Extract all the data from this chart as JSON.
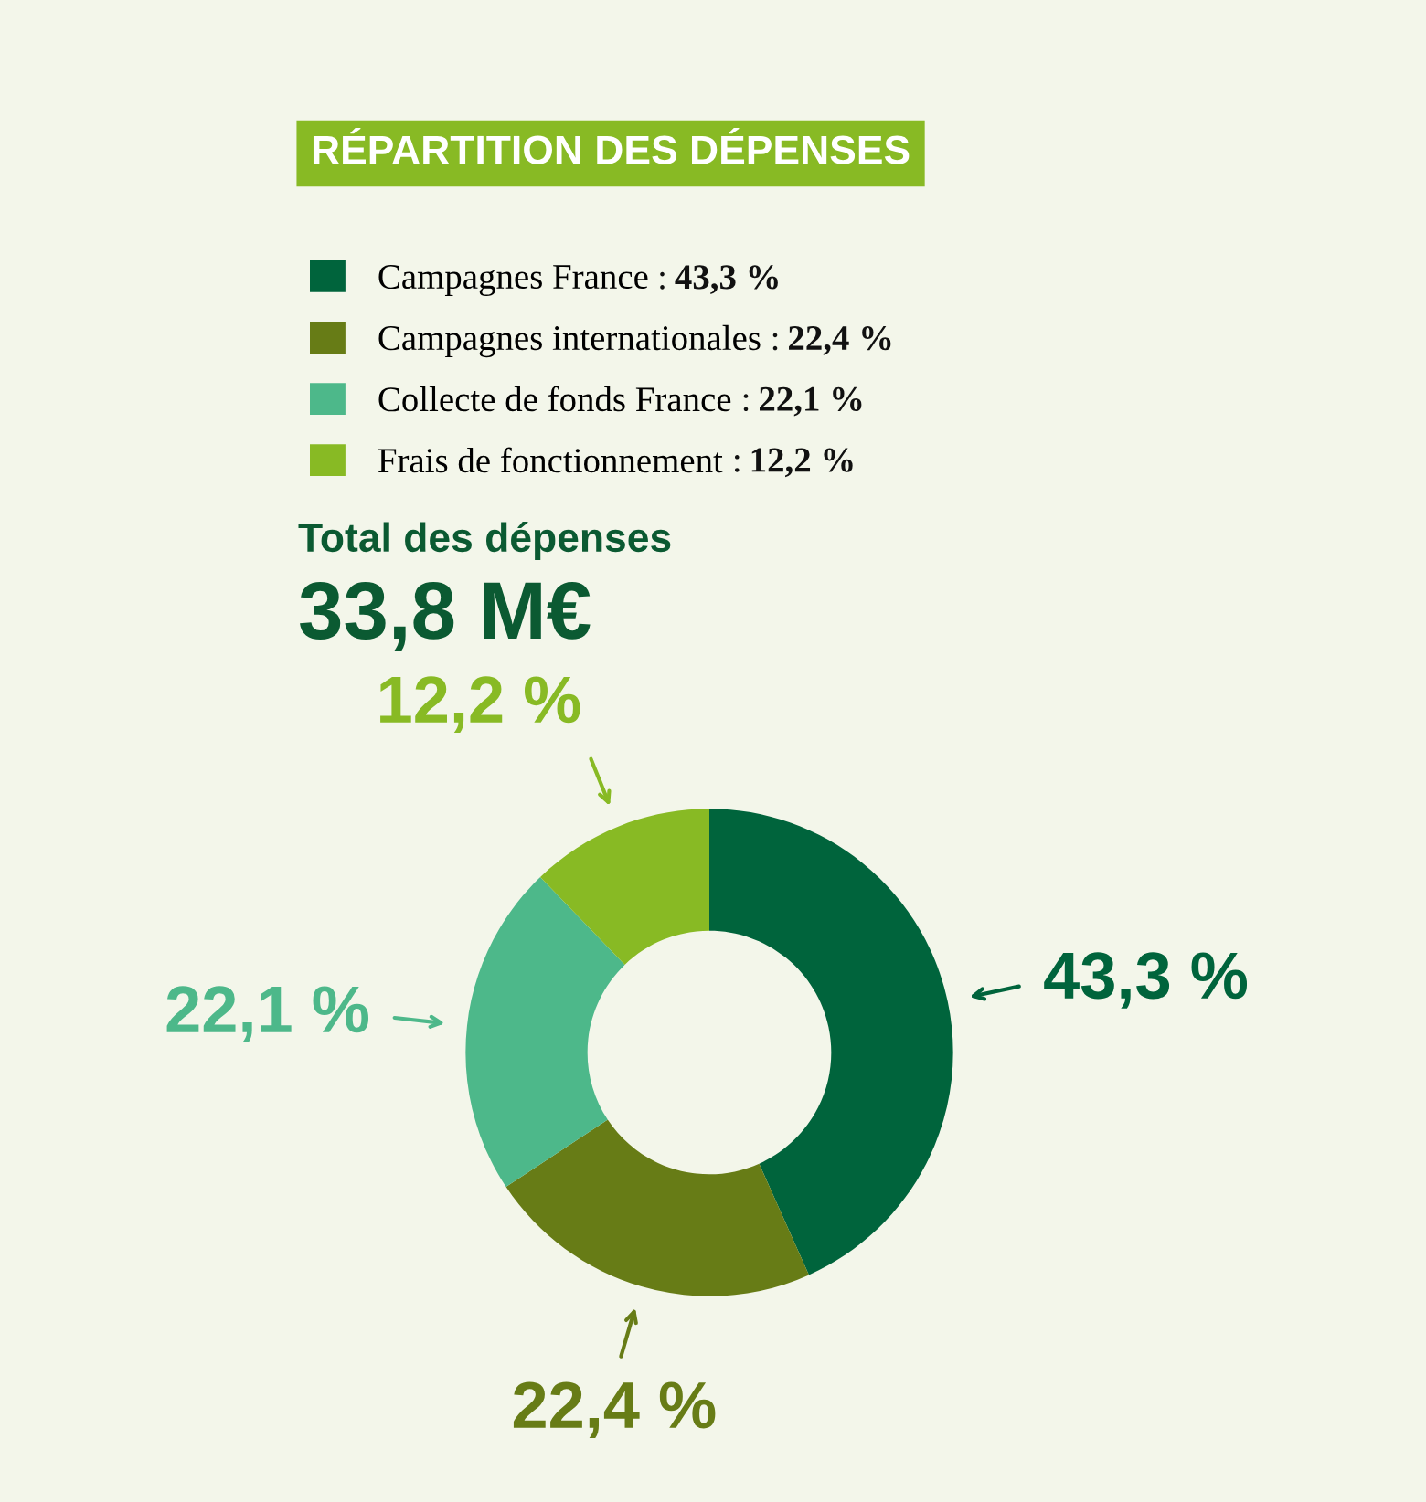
{
  "chart_data": {
    "type": "donut",
    "title": "RÉPARTITION DES DÉPENSES",
    "categories": [
      "Campagnes France",
      "Campagnes internationales",
      "Collecte de fonds France",
      "Frais de fonctionnement"
    ],
    "values": [
      43.3,
      22.4,
      22.1,
      12.2
    ],
    "value_labels": [
      "43,3 %",
      "22,4 %",
      "22,1 %",
      "12,2 %"
    ],
    "colors": [
      "#00643c",
      "#677c16",
      "#4db88a",
      "#88ba24"
    ],
    "annotations": [
      "Total des dépenses",
      "33,8 M€",
      ":"
    ],
    "legend": "top"
  }
}
